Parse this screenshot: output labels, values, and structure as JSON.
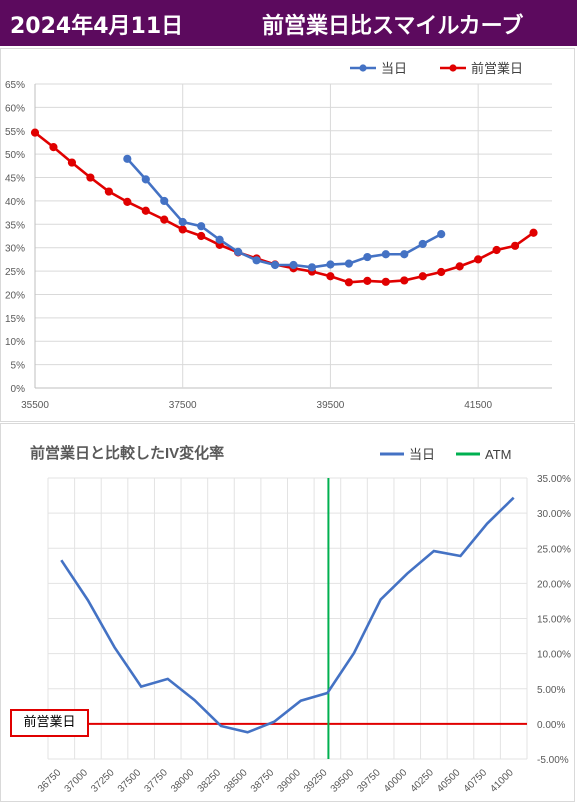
{
  "header": {
    "date": "2024年4月11日",
    "title": "前営業日比スマイルカーブ"
  },
  "chart_data": [
    {
      "type": "line",
      "title": "",
      "legend": [
        "当日",
        "前営業日"
      ],
      "legend_position": "top-right",
      "x_ticks": [
        "35500",
        "37500",
        "39500",
        "41500"
      ],
      "xlim": [
        35500,
        42500
      ],
      "y_ticks": [
        "0%",
        "5%",
        "10%",
        "15%",
        "20%",
        "25%",
        "30%",
        "35%",
        "40%",
        "45%",
        "50%",
        "55%",
        "60%",
        "65%"
      ],
      "ylim": [
        0,
        65
      ],
      "y_unit": "%",
      "grid": true,
      "colors": {
        "当日": "#4472c4",
        "前営業日": "#e00000"
      },
      "series": [
        {
          "name": "当日",
          "x": [
            36750,
            37000,
            37250,
            37500,
            37750,
            38000,
            38250,
            38500,
            38750,
            39000,
            39250,
            39500,
            39750,
            40000,
            40250,
            40500,
            40750,
            41000
          ],
          "values": [
            49.0,
            44.6,
            40.0,
            35.5,
            34.6,
            31.7,
            29.1,
            27.3,
            26.3,
            26.3,
            25.8,
            26.4,
            26.6,
            28.0,
            28.6,
            28.6,
            30.8,
            32.9
          ]
        },
        {
          "name": "前営業日",
          "x": [
            35500,
            35750,
            36000,
            36250,
            36500,
            36750,
            37000,
            37250,
            37500,
            37750,
            38000,
            38250,
            38500,
            38750,
            39000,
            39250,
            39500,
            39750,
            40000,
            40250,
            40500,
            40750,
            41000,
            41250,
            41500,
            41750,
            42000,
            42250
          ],
          "values": [
            54.6,
            51.5,
            48.2,
            45.0,
            42.0,
            39.8,
            37.9,
            36.0,
            33.9,
            32.5,
            30.6,
            29.0,
            27.7,
            26.4,
            25.6,
            24.9,
            23.9,
            22.6,
            22.9,
            22.7,
            23.0,
            23.9,
            24.8,
            26.0,
            27.5,
            29.5,
            30.4,
            33.2
          ]
        }
      ]
    },
    {
      "type": "line",
      "title": "前営業日と比較したIV変化率",
      "legend": [
        "当日",
        "ATM"
      ],
      "legend_position": "top-right",
      "categories": [
        "36750",
        "37000",
        "37250",
        "37500",
        "37750",
        "38000",
        "38250",
        "38500",
        "38750",
        "39000",
        "39250",
        "39500",
        "39750",
        "40000",
        "40250",
        "40500",
        "40750",
        "41000"
      ],
      "y_ticks": [
        "35.00%",
        "30.00%",
        "25.00%",
        "20.00%",
        "15.00%",
        "10.00%",
        "5.00%",
        "0.00%",
        "-5.00%"
      ],
      "ylim": [
        -5,
        35
      ],
      "y_unit": "%",
      "grid": true,
      "colors": {
        "当日": "#4472c4",
        "ATM": "#00b050",
        "baseline": "#e00000"
      },
      "series": [
        {
          "name": "当日",
          "values": [
            23.3,
            17.6,
            10.9,
            5.3,
            6.4,
            3.4,
            -0.3,
            -1.2,
            0.3,
            3.3,
            4.4,
            10.1,
            17.7,
            21.4,
            24.6,
            23.9,
            28.5,
            32.2
          ]
        }
      ],
      "atm_category": "39250",
      "baseline_value": 0,
      "baseline_label": "前営業日"
    }
  ]
}
